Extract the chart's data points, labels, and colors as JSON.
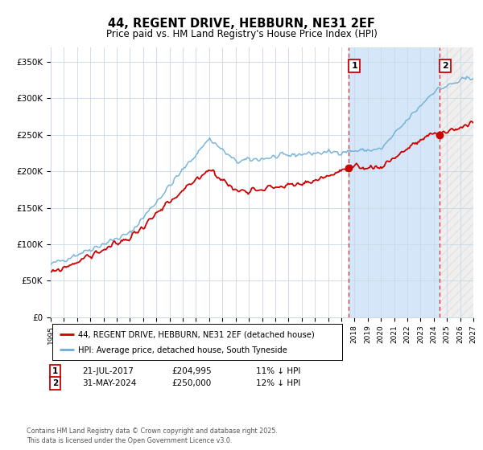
{
  "title": "44, REGENT DRIVE, HEBBURN, NE31 2EF",
  "subtitle": "Price paid vs. HM Land Registry's House Price Index (HPI)",
  "ylabel_ticks": [
    "£0",
    "£50K",
    "£100K",
    "£150K",
    "£200K",
    "£250K",
    "£300K",
    "£350K"
  ],
  "ytick_values": [
    0,
    50000,
    100000,
    150000,
    200000,
    250000,
    300000,
    350000
  ],
  "ylim": [
    0,
    370000
  ],
  "xlim_start": 1995.3,
  "xlim_end": 2027.0,
  "hpi_color": "#6baed6",
  "sale_color": "#cc0000",
  "bg_color": "#dce8f5",
  "grid_color": "#c8d8e8",
  "marker1_x": 2017.55,
  "marker1_y": 204995,
  "marker2_x": 2024.42,
  "marker2_y": 250000,
  "legend_sale": "44, REGENT DRIVE, HEBBURN, NE31 2EF (detached house)",
  "legend_hpi": "HPI: Average price, detached house, South Tyneside",
  "marker1_date": "21-JUL-2017",
  "marker1_price": "£204,995",
  "marker1_hpi": "11% ↓ HPI",
  "marker2_date": "31-MAY-2024",
  "marker2_price": "£250,000",
  "marker2_hpi": "12% ↓ HPI",
  "footnote": "Contains HM Land Registry data © Crown copyright and database right 2025.\nThis data is licensed under the Open Government Licence v3.0."
}
